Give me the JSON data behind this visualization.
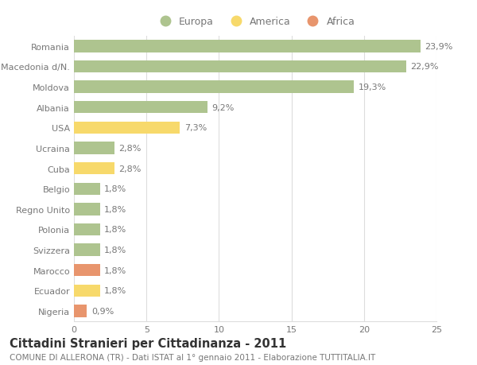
{
  "categories": [
    "Romania",
    "Macedonia d/N.",
    "Moldova",
    "Albania",
    "USA",
    "Ucraina",
    "Cuba",
    "Belgio",
    "Regno Unito",
    "Polonia",
    "Svizzera",
    "Marocco",
    "Ecuador",
    "Nigeria"
  ],
  "values": [
    23.9,
    22.9,
    19.3,
    9.2,
    7.3,
    2.8,
    2.8,
    1.8,
    1.8,
    1.8,
    1.8,
    1.8,
    1.8,
    0.9
  ],
  "labels": [
    "23,9%",
    "22,9%",
    "19,3%",
    "9,2%",
    "7,3%",
    "2,8%",
    "2,8%",
    "1,8%",
    "1,8%",
    "1,8%",
    "1,8%",
    "1,8%",
    "1,8%",
    "0,9%"
  ],
  "colors": [
    "#aec48f",
    "#aec48f",
    "#aec48f",
    "#aec48f",
    "#f7d96b",
    "#aec48f",
    "#f7d96b",
    "#aec48f",
    "#aec48f",
    "#aec48f",
    "#aec48f",
    "#e8956d",
    "#f7d96b",
    "#e8956d"
  ],
  "legend_items": [
    {
      "label": "Europa",
      "color": "#aec48f"
    },
    {
      "label": "America",
      "color": "#f7d96b"
    },
    {
      "label": "Africa",
      "color": "#e8956d"
    }
  ],
  "title1": "Cittadini Stranieri per Cittadinanza - 2011",
  "title2": "COMUNE DI ALLERONA (TR) - Dati ISTAT al 1° gennaio 2011 - Elaborazione TUTTITALIA.IT",
  "xlim": [
    0,
    25
  ],
  "xticks": [
    0,
    5,
    10,
    15,
    20,
    25
  ],
  "background_color": "#ffffff",
  "grid_color": "#dddddd",
  "bar_height": 0.6,
  "label_fontsize": 8,
  "tick_fontsize": 8,
  "title1_fontsize": 10.5,
  "title2_fontsize": 7.5,
  "text_color": "#777777"
}
